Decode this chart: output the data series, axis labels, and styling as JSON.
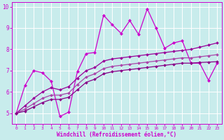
{
  "xlabel": "Windchill (Refroidissement éolien,°C)",
  "bg_color": "#c8ecec",
  "line_color_jagged": "#cc00cc",
  "line_color_upper": "#990099",
  "line_color_mid": "#aa44aa",
  "line_color_lower": "#880088",
  "grid_color": "#ffffff",
  "x": [
    0,
    1,
    2,
    3,
    4,
    5,
    6,
    7,
    8,
    9,
    10,
    11,
    12,
    13,
    14,
    15,
    16,
    17,
    18,
    19,
    20,
    21,
    22,
    23
  ],
  "ylim": [
    4.5,
    10.2
  ],
  "xlim": [
    -0.5,
    23.5
  ],
  "y_jagged": [
    5.0,
    6.3,
    7.0,
    6.9,
    6.5,
    4.85,
    5.05,
    6.95,
    7.8,
    7.85,
    9.6,
    9.15,
    8.75,
    9.35,
    8.7,
    9.9,
    9.0,
    8.05,
    8.3,
    8.4,
    7.35,
    7.35,
    6.55,
    7.35
  ],
  "y_upper": [
    5.0,
    5.35,
    5.7,
    6.0,
    6.2,
    6.1,
    6.25,
    6.65,
    7.0,
    7.15,
    7.45,
    7.55,
    7.6,
    7.65,
    7.7,
    7.75,
    7.8,
    7.85,
    7.9,
    7.95,
    8.0,
    8.1,
    8.2,
    8.3
  ],
  "y_mid": [
    5.0,
    5.2,
    5.45,
    5.7,
    5.85,
    5.85,
    5.95,
    6.35,
    6.7,
    6.85,
    7.1,
    7.2,
    7.25,
    7.3,
    7.35,
    7.4,
    7.45,
    7.5,
    7.55,
    7.6,
    7.6,
    7.65,
    7.7,
    7.75
  ],
  "y_lower": [
    5.0,
    5.1,
    5.3,
    5.5,
    5.65,
    5.65,
    5.75,
    6.1,
    6.45,
    6.6,
    6.85,
    6.95,
    7.0,
    7.05,
    7.1,
    7.15,
    7.2,
    7.25,
    7.3,
    7.35,
    7.35,
    7.38,
    7.4,
    7.42
  ]
}
